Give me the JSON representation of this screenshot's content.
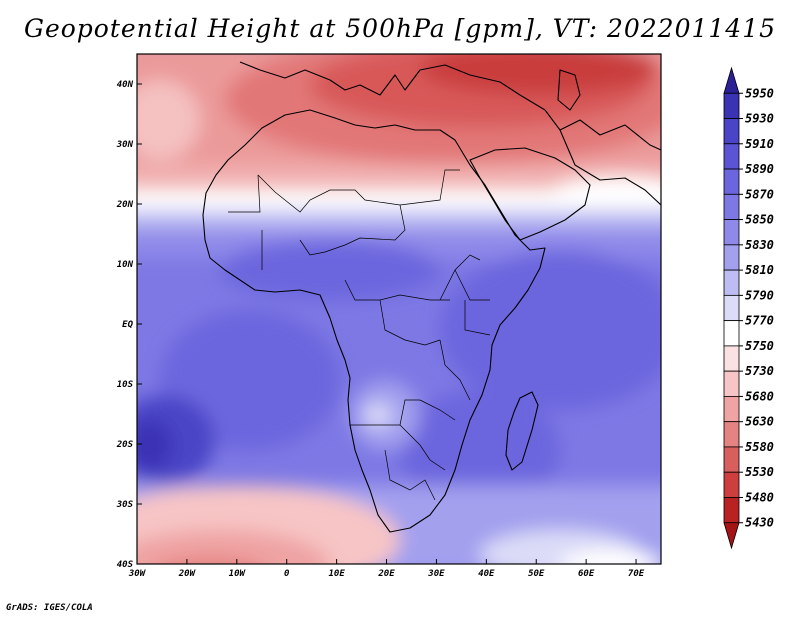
{
  "title": "Geopotential Height at 500hPa [gpm], VT: 2022011415",
  "footer": "GrADS: IGES/COLA",
  "map": {
    "lon_range": [
      -30,
      75
    ],
    "lat_range": [
      -40,
      45
    ],
    "x_ticks": [
      "30W",
      "20W",
      "10W",
      "0",
      "10E",
      "20E",
      "30E",
      "40E",
      "50E",
      "60E",
      "70E"
    ],
    "y_ticks": [
      "40N",
      "30N",
      "20N",
      "10N",
      "EQ",
      "10S",
      "20S",
      "30S",
      "40S"
    ]
  },
  "colorbar": {
    "levels": [
      "5950",
      "5930",
      "5910",
      "5890",
      "5870",
      "5850",
      "5830",
      "5810",
      "5790",
      "5770",
      "5750",
      "5730",
      "5680",
      "5630",
      "5580",
      "5530",
      "5480",
      "5430"
    ],
    "colors": [
      "#2b2096",
      "#3a33b4",
      "#4a44c6",
      "#5b55d6",
      "#6c66de",
      "#7d78e4",
      "#8f8ae9",
      "#a3a0ee",
      "#bdbcf3",
      "#dcdcf8",
      "#ffffff",
      "#fbe1e1",
      "#f7c5c5",
      "#efa3a3",
      "#e58282",
      "#d95f5f",
      "#cd3f3f",
      "#b82222",
      "#a41414"
    ]
  }
}
